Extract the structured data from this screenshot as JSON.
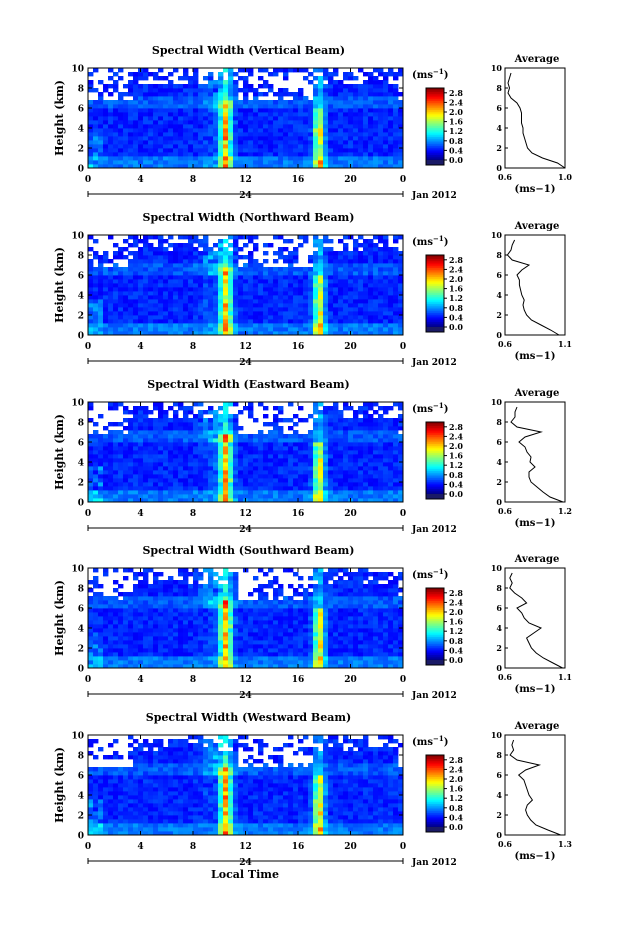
{
  "figure": {
    "x_axis_title": "Local Time",
    "y_axis_title": "Height (km)",
    "unit_label": "(ms",
    "unit_sup": "−1",
    "average_title": "Average",
    "date_label": "Jan 2012",
    "day_label": "24"
  },
  "chart_data": [
    {
      "type": "heatmap",
      "title": "Spectral Width (Vertical Beam)",
      "xlabel": "",
      "ylabel": "Height (km)",
      "xlim": [
        0,
        24
      ],
      "ylim": [
        0,
        10
      ],
      "x_ticks": [
        "0",
        "4",
        "8",
        "12",
        "16",
        "20",
        "0"
      ],
      "y_ticks": [
        "0",
        "2",
        "4",
        "6",
        "8",
        "10"
      ],
      "colorbar": {
        "ticks": [
          "0.0",
          "0.4",
          "0.8",
          "1.2",
          "1.6",
          "2.0",
          "2.4",
          "2.8"
        ],
        "range": [
          0,
          3.0
        ]
      },
      "average_profile": {
        "xlim": [
          0.6,
          1.0
        ],
        "x_ticks": [
          "0.6",
          "1.0"
        ],
        "xlabel": "(ms−1)",
        "height": [
          0,
          0.5,
          1,
          1.5,
          2,
          2.5,
          3,
          3.5,
          4,
          4.5,
          5,
          5.5,
          6,
          6.5,
          7,
          7.5,
          8,
          8.5,
          9,
          9.5
        ],
        "value": [
          1.0,
          0.95,
          0.85,
          0.78,
          0.75,
          0.74,
          0.73,
          0.72,
          0.72,
          0.71,
          0.71,
          0.71,
          0.7,
          0.68,
          0.64,
          0.62,
          0.63,
          0.62,
          0.63,
          0.64
        ]
      }
    },
    {
      "type": "heatmap",
      "title": "Spectral Width (Northward Beam)",
      "xlabel": "",
      "ylabel": "Height (km)",
      "xlim": [
        0,
        24
      ],
      "ylim": [
        0,
        10
      ],
      "x_ticks": [
        "0",
        "4",
        "8",
        "12",
        "16",
        "20",
        "0"
      ],
      "y_ticks": [
        "0",
        "2",
        "4",
        "6",
        "8",
        "10"
      ],
      "colorbar": {
        "ticks": [
          "0.0",
          "0.4",
          "0.8",
          "1.2",
          "1.6",
          "2.0",
          "2.4",
          "2.8"
        ],
        "range": [
          0,
          3.0
        ]
      },
      "average_profile": {
        "xlim": [
          0.6,
          1.1
        ],
        "x_ticks": [
          "0.6",
          "1.1"
        ],
        "xlabel": "(ms−1)",
        "height": [
          0,
          0.5,
          1,
          1.5,
          2,
          2.5,
          3,
          3.5,
          4,
          4.5,
          5,
          5.5,
          6,
          6.5,
          7,
          7.5,
          8,
          8.5,
          9,
          9.5
        ],
        "value": [
          1.05,
          0.98,
          0.9,
          0.82,
          0.78,
          0.76,
          0.75,
          0.76,
          0.74,
          0.73,
          0.72,
          0.72,
          0.7,
          0.74,
          0.8,
          0.66,
          0.62,
          0.65,
          0.66,
          0.68
        ]
      }
    },
    {
      "type": "heatmap",
      "title": "Spectral Width (Eastward Beam)",
      "xlabel": "",
      "ylabel": "Height (km)",
      "xlim": [
        0,
        24
      ],
      "ylim": [
        0,
        10
      ],
      "x_ticks": [
        "0",
        "4",
        "8",
        "12",
        "16",
        "20",
        "0"
      ],
      "y_ticks": [
        "0",
        "2",
        "4",
        "6",
        "8",
        "10"
      ],
      "colorbar": {
        "ticks": [
          "0.0",
          "0.4",
          "0.8",
          "1.2",
          "1.6",
          "2.0",
          "2.4",
          "2.8"
        ],
        "range": [
          0,
          3.0
        ]
      },
      "average_profile": {
        "xlim": [
          0.6,
          1.2
        ],
        "x_ticks": [
          "0.6",
          "1.2"
        ],
        "xlabel": "(ms−1)",
        "height": [
          0,
          0.5,
          1,
          1.5,
          2,
          2.5,
          3,
          3.5,
          4,
          4.5,
          5,
          5.5,
          6,
          6.5,
          7,
          7.5,
          8,
          8.5,
          9,
          9.5
        ],
        "value": [
          1.18,
          1.05,
          0.98,
          0.92,
          0.86,
          0.84,
          0.84,
          0.9,
          0.85,
          0.86,
          0.82,
          0.8,
          0.74,
          0.8,
          0.96,
          0.72,
          0.66,
          0.7,
          0.7,
          0.72
        ]
      }
    },
    {
      "type": "heatmap",
      "title": "Spectral Width (Southward Beam)",
      "xlabel": "",
      "ylabel": "Height (km)",
      "xlim": [
        0,
        24
      ],
      "ylim": [
        0,
        10
      ],
      "x_ticks": [
        "0",
        "4",
        "8",
        "12",
        "16",
        "20",
        "0"
      ],
      "y_ticks": [
        "0",
        "2",
        "4",
        "6",
        "8",
        "10"
      ],
      "colorbar": {
        "ticks": [
          "0.0",
          "0.4",
          "0.8",
          "1.2",
          "1.6",
          "2.0",
          "2.4",
          "2.8"
        ],
        "range": [
          0,
          3.0
        ]
      },
      "average_profile": {
        "xlim": [
          0.6,
          1.1
        ],
        "x_ticks": [
          "0.6",
          "1.1"
        ],
        "xlabel": "(ms−1)",
        "height": [
          0,
          0.5,
          1,
          1.5,
          2,
          2.5,
          3,
          3.5,
          4,
          4.5,
          5,
          5.5,
          6,
          6.5,
          7,
          7.5,
          8,
          8.5,
          9,
          9.5
        ],
        "value": [
          1.08,
          1.0,
          0.92,
          0.86,
          0.82,
          0.8,
          0.78,
          0.84,
          0.9,
          0.8,
          0.76,
          0.74,
          0.7,
          0.78,
          0.74,
          0.68,
          0.64,
          0.66,
          0.64,
          0.66
        ]
      }
    },
    {
      "type": "heatmap",
      "title": "Spectral Width (Westward Beam)",
      "xlabel": "",
      "ylabel": "Height (km)",
      "xlim": [
        0,
        24
      ],
      "ylim": [
        0,
        10
      ],
      "x_ticks": [
        "0",
        "4",
        "8",
        "12",
        "16",
        "20",
        "0"
      ],
      "y_ticks": [
        "0",
        "2",
        "4",
        "6",
        "8",
        "10"
      ],
      "colorbar": {
        "ticks": [
          "0.0",
          "0.4",
          "0.8",
          "1.2",
          "1.6",
          "2.0",
          "2.4",
          "2.8"
        ],
        "range": [
          0,
          3.0
        ]
      },
      "average_profile": {
        "xlim": [
          0.6,
          1.3
        ],
        "x_ticks": [
          "0.6",
          "1.3"
        ],
        "xlabel": "(ms−1)",
        "height": [
          0,
          0.5,
          1,
          1.5,
          2,
          2.5,
          3,
          3.5,
          4,
          4.5,
          5,
          5.5,
          6,
          6.5,
          7,
          7.5,
          8,
          8.5,
          9,
          9.5
        ],
        "value": [
          1.25,
          1.1,
          0.96,
          0.9,
          0.86,
          0.84,
          0.86,
          0.92,
          0.88,
          0.86,
          0.84,
          0.82,
          0.76,
          0.84,
          1.0,
          0.74,
          0.66,
          0.7,
          0.68,
          0.7
        ]
      }
    }
  ]
}
